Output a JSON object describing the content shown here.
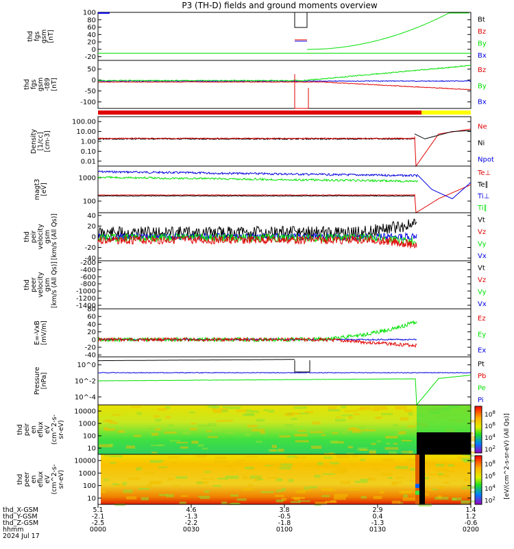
{
  "title": "P3 (TH-D) fields and ground moments overview",
  "colors": {
    "black": "#000000",
    "red": "#e00000",
    "green": "#00e000",
    "blue": "#0000e0",
    "yellow": "#ffff00"
  },
  "chart_data": [
    {
      "type": "line",
      "id": "fgs",
      "ylabel": [
        "thd",
        "fgs",
        "gsm",
        "[nT]"
      ],
      "ylim": [
        -30,
        100
      ],
      "yticks": [
        100,
        80,
        60,
        40,
        20,
        0,
        -20
      ],
      "legend": [
        {
          "name": "Bt",
          "color": "black"
        },
        {
          "name": "Bz",
          "color": "red"
        },
        {
          "name": "By",
          "color": "green"
        },
        {
          "name": "Bx",
          "color": "blue"
        }
      ]
    },
    {
      "type": "line",
      "id": "fgs_dsl",
      "ylabel": [
        "thd",
        "fgs",
        "gsm",
        "-t89",
        "[nT]"
      ],
      "ylim": [
        -130,
        90
      ],
      "yticks": [
        50,
        0,
        -50,
        -100
      ],
      "legend": [
        {
          "name": "Bz",
          "color": "red"
        },
        {
          "name": "By",
          "color": "green"
        },
        {
          "name": "Bx",
          "color": "blue"
        }
      ]
    },
    {
      "type": "line",
      "id": "density",
      "ylabel": [
        "Density",
        "[1/cc]",
        "[cm-3]"
      ],
      "log": true,
      "yticks": [
        "100.00",
        "10.00",
        "1.00",
        "0.10",
        "0.01"
      ],
      "legend": [
        {
          "name": "Ne",
          "color": "red"
        },
        {
          "name": "Ni",
          "color": "black"
        },
        {
          "name": "Npot",
          "color": "blue"
        }
      ]
    },
    {
      "type": "line",
      "id": "temp",
      "ylabel": [
        "magt3",
        "[eV]"
      ],
      "log": true,
      "yticks": [
        "1000",
        "100"
      ],
      "legend": [
        {
          "name": "Te⊥",
          "color": "red"
        },
        {
          "name": "Te∥",
          "color": "black"
        },
        {
          "name": "Ti⊥",
          "color": "blue"
        },
        {
          "name": "Ti∥",
          "color": "green"
        }
      ]
    },
    {
      "type": "line",
      "id": "peir_vel",
      "ylabel": [
        "thd",
        "peir",
        "velocity",
        "gsm",
        "[km/s (All Qs)]"
      ],
      "ylim": [
        -45,
        45
      ],
      "yticks": [
        40,
        20,
        0,
        -20,
        -40
      ],
      "legend": [
        {
          "name": "Vt",
          "color": "black"
        },
        {
          "name": "Vz",
          "color": "red"
        },
        {
          "name": "Vy",
          "color": "green"
        },
        {
          "name": "Vx",
          "color": "blue"
        }
      ]
    },
    {
      "type": "line",
      "id": "peer_vel",
      "ylabel": [
        "thd",
        "peer",
        "velocity",
        "gsm",
        "[km/s (All Qs)]"
      ],
      "ylim": [
        -1500,
        -150
      ],
      "yticks": [
        -200,
        -400,
        -600,
        -800,
        -1000,
        -1200,
        -1400
      ],
      "legend": [
        {
          "name": "Vt",
          "color": "black"
        },
        {
          "name": "Vz",
          "color": "red"
        },
        {
          "name": "Vy",
          "color": "green"
        },
        {
          "name": "Vx",
          "color": "blue"
        }
      ]
    },
    {
      "type": "line",
      "id": "efield",
      "ylabel": [
        "E=-VxB",
        "[mV/m]"
      ],
      "ylim": [
        -45,
        80
      ],
      "yticks": [
        80,
        60,
        40,
        20,
        0,
        -20,
        -40
      ],
      "legend": [
        {
          "name": "Ez",
          "color": "red"
        },
        {
          "name": "Ey",
          "color": "green"
        },
        {
          "name": "Ex",
          "color": "blue"
        }
      ]
    },
    {
      "type": "line",
      "id": "pressure",
      "ylabel": [
        "Pressure",
        "[nPa]"
      ],
      "log": true,
      "yticks": [
        "10^0",
        "10^-2",
        "10^-4"
      ],
      "legend": [
        {
          "name": "Pt",
          "color": "black"
        },
        {
          "name": "Pb",
          "color": "red"
        },
        {
          "name": "Pe",
          "color": "green"
        },
        {
          "name": "Pi",
          "color": "blue"
        }
      ]
    },
    {
      "type": "heatmap",
      "id": "peir_spec",
      "ylabel": [
        "thd",
        "peir",
        "en",
        "eflux",
        "eV",
        "(cm^2-s-",
        "sr-eV)"
      ],
      "yticks": [
        "10000",
        "1000",
        "100",
        "10"
      ]
    },
    {
      "type": "heatmap",
      "id": "peer_spec",
      "ylabel": [
        "thd",
        "peer",
        "en",
        "eflux",
        "eV",
        "(cm^2-s-",
        "sr-eV)"
      ],
      "yticks": [
        "10000",
        "1000",
        "100",
        "10"
      ]
    }
  ],
  "colorbar": {
    "ticks": [
      "10^8",
      "10^6",
      "10^4",
      "10^2"
    ],
    "label": "[eV/(cm^2-s-sr-eV) (All Qs)]"
  },
  "xaxis": {
    "rows": [
      {
        "label": "thd_X-GSM",
        "values": [
          "5.1",
          "4.6",
          "3.8",
          "2.9",
          "1.4"
        ]
      },
      {
        "label": "thd_Y-GSM",
        "values": [
          "-2.1",
          "-1.3",
          "-0.5",
          "0.4",
          "1.2"
        ]
      },
      {
        "label": "thd_Z-GSM",
        "values": [
          "-2.5",
          "-2.2",
          "-1.8",
          "-1.3",
          "-0.6"
        ]
      },
      {
        "label": "hhmm",
        "values": [
          "0000",
          "0030",
          "0100",
          "0130",
          "0200"
        ]
      }
    ],
    "date": "2024 Jul 17"
  }
}
